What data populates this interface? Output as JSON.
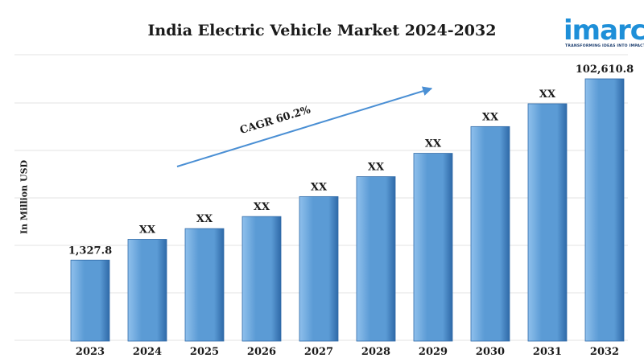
{
  "header": {
    "title": "India Electric Vehicle Market 2024-2032"
  },
  "logo": {
    "word": "imarc",
    "tagline": "TRANSFORMING IDEAS INTO IMPACT"
  },
  "colors": {
    "bar": "#5b9bd5",
    "bar_dark": "#2f6aa8",
    "bar_light": "#8fc0ec",
    "arrow": "#4a8fd4",
    "grid": "#e3e3e3"
  },
  "chart_data": {
    "type": "bar",
    "title": "India Electric Vehicle Market 2024-2032",
    "xlabel": "",
    "ylabel": "In Million USD",
    "categories": [
      "2023",
      "2024",
      "2025",
      "2026",
      "2027",
      "2028",
      "2029",
      "2030",
      "2031",
      "2032"
    ],
    "values": [
      1327.8,
      null,
      null,
      null,
      null,
      null,
      null,
      null,
      null,
      102610.8
    ],
    "relative_bar_heights": [
      0.309,
      0.388,
      0.429,
      0.475,
      0.551,
      0.627,
      0.716,
      0.818,
      0.905,
      1.0
    ],
    "data_labels": [
      "1,327.8",
      "XX",
      "XX",
      "XX",
      "XX",
      "XX",
      "XX",
      "XX",
      "XX",
      "102,610.8"
    ],
    "annotations": [
      {
        "text": "CAGR 60.2%"
      }
    ],
    "grid": true
  }
}
